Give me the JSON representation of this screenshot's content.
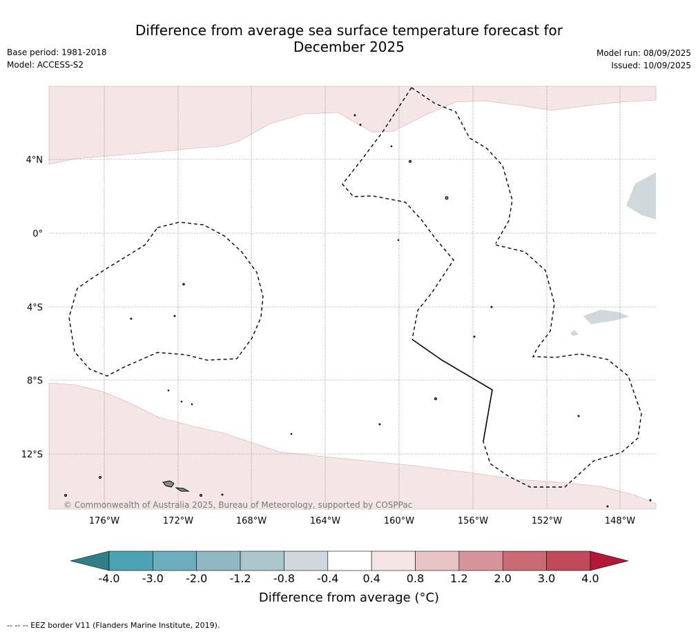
{
  "header": {
    "title_line1": "Difference from average sea surface temperature forecast for",
    "title_line2": "December 2025",
    "base_period": "Base period: 1981-2018",
    "model": "Model: ACCESS-S2",
    "model_run": "Model run: 08/09/2025",
    "issued": "Issued: 10/09/2025"
  },
  "map": {
    "lon_labels": [
      "176°W",
      "172°W",
      "168°W",
      "164°W",
      "160°W",
      "156°W",
      "152°W",
      "148°W"
    ],
    "lat_labels": [
      "4°N",
      "0°",
      "4°S",
      "8°S",
      "12°S"
    ],
    "copyright": "© Commonwealth of Australia 2025, Bureau of Meteorology, supported by COSPPac",
    "colors": {
      "warm_light": "#f5e6e6",
      "cool_light": "#cfd9db",
      "land": "#8a8a8a"
    }
  },
  "colorbar": {
    "labels": [
      "-4.0",
      "-3.0",
      "-2.0",
      "-1.2",
      "-0.8",
      "-0.4",
      "0.4",
      "0.8",
      "1.2",
      "2.0",
      "3.0",
      "4.0"
    ],
    "colors": [
      "#2f7f86",
      "#4ba3b3",
      "#6caebd",
      "#8fb8c3",
      "#aac5cb",
      "#cfd9db",
      "#ffffff",
      "#f5e6e6",
      "#e8c5c5",
      "#d6949a",
      "#c96a74",
      "#c04a57",
      "#b3173a"
    ],
    "unit_label": "Difference from average (°C)"
  },
  "footnote": "--  --  -- EEZ border V11 (Flanders Marine Institute, 2019)."
}
